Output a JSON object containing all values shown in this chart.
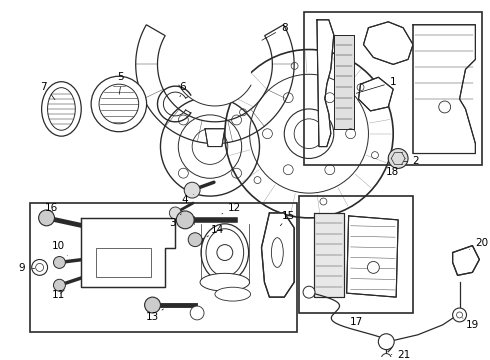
{
  "bg_color": "#ffffff",
  "line_color": "#2a2a2a",
  "fig_w": 4.9,
  "fig_h": 3.6,
  "dpi": 100
}
